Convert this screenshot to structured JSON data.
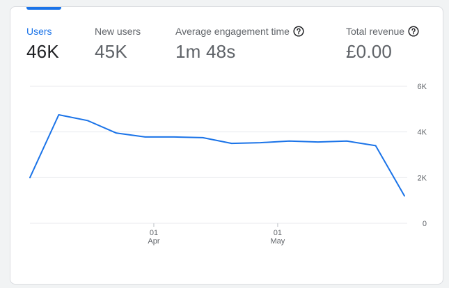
{
  "tabs": [
    {
      "label": "Users",
      "value": "46K",
      "active": true,
      "help": false
    },
    {
      "label": "New users",
      "value": "45K",
      "active": false,
      "help": false
    },
    {
      "label": "Average engagement time",
      "value": "1m 48s",
      "active": false,
      "help": true
    },
    {
      "label": "Total revenue",
      "value": "£0.00",
      "active": false,
      "help": true
    }
  ],
  "colors": {
    "accent": "#1a73e8",
    "line": "#1a73e8",
    "grid": "#e8eaed",
    "text_muted": "#5f6368"
  },
  "chart_data": {
    "type": "line",
    "series": [
      {
        "values": [
          2000,
          4750,
          4500,
          3950,
          3780,
          3780,
          3750,
          3500,
          3530,
          3600,
          3560,
          3600,
          3400,
          1200
        ]
      }
    ],
    "ylim": [
      0,
      6000
    ],
    "y_ticks": [
      {
        "value": 6000,
        "label": "6K"
      },
      {
        "value": 4000,
        "label": "4K"
      },
      {
        "value": 2000,
        "label": "2K"
      },
      {
        "value": 0,
        "label": "0"
      }
    ],
    "x_ticks": [
      {
        "index": 4.3,
        "day": "01",
        "month": "Apr"
      },
      {
        "index": 8.6,
        "day": "01",
        "month": "May"
      }
    ],
    "grid": true,
    "y_axis_position": "right"
  }
}
